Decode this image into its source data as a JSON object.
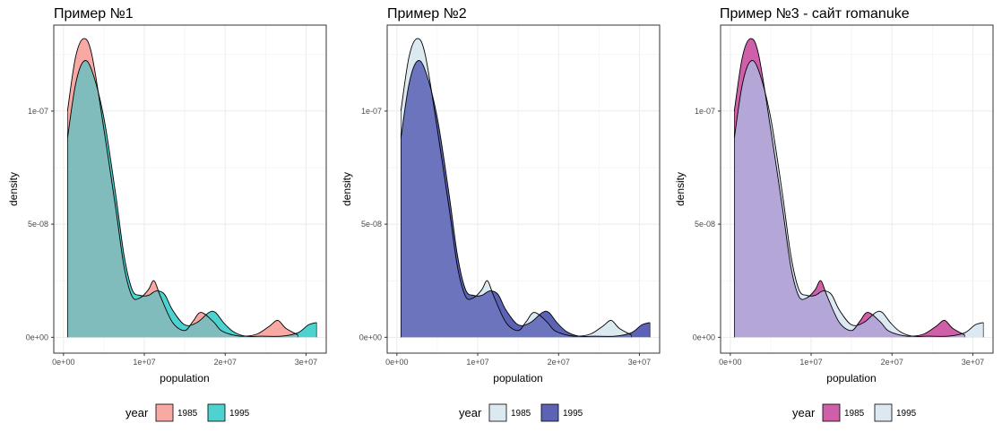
{
  "chart_data": [
    {
      "type": "area",
      "title": "Пример №1",
      "xlabel": "population",
      "ylabel": "density",
      "xlim": [
        -1200000,
        32500000
      ],
      "ylim": [
        -7e-09,
        1.38e-07
      ],
      "xticks": [
        0,
        10000000,
        20000000,
        30000000
      ],
      "xtick_labels": [
        "0e+00",
        "1e+07",
        "2e+07",
        "3e+07"
      ],
      "yticks": [
        0,
        5e-08,
        1e-07
      ],
      "ytick_labels": [
        "0e+00",
        "5e-08",
        "1e-07"
      ],
      "grid": true,
      "legend_position": "bottom",
      "legend_title": "year",
      "colors": [
        "#f8a9a4",
        "#4dd2d0"
      ],
      "series": [
        {
          "name": "1985",
          "x": [
            500000,
            1500000,
            2500000,
            3500000,
            5000000,
            6500000,
            7500000,
            8500000,
            9500000,
            10500000,
            11200000,
            12000000,
            13500000,
            15000000,
            16000000,
            17000000,
            18500000,
            19500000,
            21000000,
            22500000,
            24000000,
            25500000,
            26500000,
            27500000,
            29000000
          ],
          "y": [
            1e-07,
            1.24e-07,
            1.32e-07,
            1.25e-07,
            9.2e-08,
            5.6e-08,
            3.1e-08,
            1.8e-08,
            1.75e-08,
            2.1e-08,
            2.5e-08,
            1.8e-08,
            6.5e-09,
            3e-09,
            7e-09,
            1.1e-08,
            7e-09,
            3e-09,
            1e-09,
            5e-10,
            1.5e-09,
            5e-09,
            7.5e-09,
            4e-09,
            1e-09
          ]
        },
        {
          "name": "1995",
          "x": [
            500000,
            1500000,
            2500000,
            3500000,
            5000000,
            6500000,
            7500000,
            8500000,
            9500000,
            10500000,
            11500000,
            12500000,
            13500000,
            15000000,
            16500000,
            18000000,
            18800000,
            19800000,
            21000000,
            22500000,
            24500000,
            27000000,
            29000000,
            30300000,
            31300000
          ],
          "y": [
            8.8e-08,
            1.12e-07,
            1.22e-07,
            1.18e-07,
            9.7e-08,
            6.2e-08,
            3.6e-08,
            2.1e-08,
            1.85e-08,
            1.85e-08,
            2.05e-08,
            1.9e-08,
            1.2e-08,
            5.5e-09,
            6.5e-09,
            1.1e-08,
            1.1e-08,
            6.5e-09,
            2.5e-09,
            5e-10,
            5e-10,
            5e-10,
            2e-09,
            5.5e-09,
            6.5e-09
          ]
        }
      ]
    },
    {
      "type": "area",
      "title": "Пример №2",
      "xlabel": "population",
      "ylabel": "density",
      "xlim": [
        -1200000,
        32500000
      ],
      "ylim": [
        -7e-09,
        1.38e-07
      ],
      "xticks": [
        0,
        10000000,
        20000000,
        30000000
      ],
      "xtick_labels": [
        "0e+00",
        "1e+07",
        "2e+07",
        "3e+07"
      ],
      "yticks": [
        0,
        5e-08,
        1e-07
      ],
      "ytick_labels": [
        "0e+00",
        "5e-08",
        "1e-07"
      ],
      "grid": true,
      "legend_position": "bottom",
      "legend_title": "year",
      "colors": [
        "#dbe9f0",
        "#5c63b4"
      ],
      "series": [
        {
          "name": "1985",
          "x": [
            500000,
            1500000,
            2500000,
            3500000,
            5000000,
            6500000,
            7500000,
            8500000,
            9500000,
            10500000,
            11200000,
            12000000,
            13500000,
            15000000,
            16000000,
            17000000,
            18500000,
            19500000,
            21000000,
            22500000,
            24000000,
            25500000,
            26500000,
            27500000,
            29000000
          ],
          "y": [
            1e-07,
            1.24e-07,
            1.32e-07,
            1.25e-07,
            9.2e-08,
            5.6e-08,
            3.1e-08,
            1.8e-08,
            1.75e-08,
            2.1e-08,
            2.5e-08,
            1.8e-08,
            6.5e-09,
            3e-09,
            7e-09,
            1.1e-08,
            7e-09,
            3e-09,
            1e-09,
            5e-10,
            1.5e-09,
            5e-09,
            7.5e-09,
            4e-09,
            1e-09
          ]
        },
        {
          "name": "1995",
          "x": [
            500000,
            1500000,
            2500000,
            3500000,
            5000000,
            6500000,
            7500000,
            8500000,
            9500000,
            10500000,
            11500000,
            12500000,
            13500000,
            15000000,
            16500000,
            18000000,
            18800000,
            19800000,
            21000000,
            22500000,
            24500000,
            27000000,
            29000000,
            30300000,
            31300000
          ],
          "y": [
            8.8e-08,
            1.12e-07,
            1.22e-07,
            1.18e-07,
            9.7e-08,
            6.2e-08,
            3.6e-08,
            2.1e-08,
            1.85e-08,
            1.85e-08,
            2.05e-08,
            1.9e-08,
            1.2e-08,
            5.5e-09,
            6.5e-09,
            1.1e-08,
            1.1e-08,
            6.5e-09,
            2.5e-09,
            5e-10,
            5e-10,
            5e-10,
            2e-09,
            5.5e-09,
            6.5e-09
          ]
        }
      ]
    },
    {
      "type": "area",
      "title": "Пример №3 - сайт romanuke",
      "xlabel": "population",
      "ylabel": "density",
      "xlim": [
        -1200000,
        32500000
      ],
      "ylim": [
        -7e-09,
        1.38e-07
      ],
      "xticks": [
        0,
        10000000,
        20000000,
        30000000
      ],
      "xtick_labels": [
        "0e+00",
        "1e+07",
        "2e+07",
        "3e+07"
      ],
      "yticks": [
        0,
        5e-08,
        1e-07
      ],
      "ytick_labels": [
        "0e+00",
        "5e-08",
        "1e-07"
      ],
      "grid": true,
      "legend_position": "bottom",
      "legend_title": "year",
      "colors": [
        "#cf5fa9",
        "#dce8f2"
      ],
      "series": [
        {
          "name": "1985",
          "x": [
            500000,
            1500000,
            2500000,
            3500000,
            5000000,
            6500000,
            7500000,
            8500000,
            9500000,
            10500000,
            11200000,
            12000000,
            13500000,
            15000000,
            16000000,
            17000000,
            18500000,
            19500000,
            21000000,
            22500000,
            24000000,
            25500000,
            26500000,
            27500000,
            29000000
          ],
          "y": [
            1e-07,
            1.24e-07,
            1.32e-07,
            1.25e-07,
            9.2e-08,
            5.6e-08,
            3.1e-08,
            1.8e-08,
            1.75e-08,
            2.1e-08,
            2.5e-08,
            1.8e-08,
            6.5e-09,
            3e-09,
            7e-09,
            1.1e-08,
            7e-09,
            3e-09,
            1e-09,
            5e-10,
            1.5e-09,
            5e-09,
            7.5e-09,
            4e-09,
            1e-09
          ]
        },
        {
          "name": "1995",
          "x": [
            500000,
            1500000,
            2500000,
            3500000,
            5000000,
            6500000,
            7500000,
            8500000,
            9500000,
            10500000,
            11500000,
            12500000,
            13500000,
            15000000,
            16500000,
            18000000,
            18800000,
            19800000,
            21000000,
            22500000,
            24500000,
            27000000,
            29000000,
            30300000,
            31300000
          ],
          "y": [
            8.8e-08,
            1.12e-07,
            1.22e-07,
            1.18e-07,
            9.7e-08,
            6.2e-08,
            3.6e-08,
            2.1e-08,
            1.85e-08,
            1.85e-08,
            2.05e-08,
            1.9e-08,
            1.2e-08,
            5.5e-09,
            6.5e-09,
            1.1e-08,
            1.1e-08,
            6.5e-09,
            2.5e-09,
            5e-10,
            5e-10,
            5e-10,
            2e-09,
            5.5e-09,
            6.5e-09
          ]
        }
      ]
    }
  ],
  "overlay_colors": [
    "#b5a6d8"
  ]
}
